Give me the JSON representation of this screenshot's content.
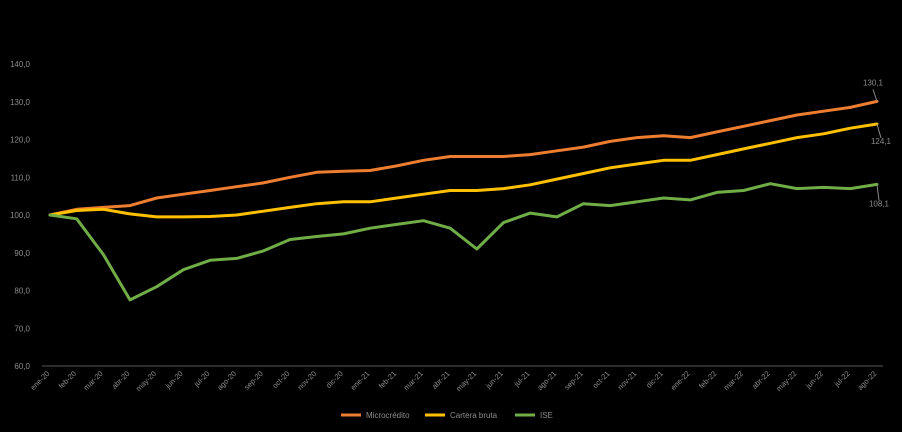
{
  "chart_data": {
    "type": "line",
    "title": "",
    "xlabel": "",
    "ylabel": "",
    "ylim": [
      60,
      140
    ],
    "yticks": [
      "60,0",
      "70,0",
      "80,0",
      "90,0",
      "100,0",
      "110,0",
      "120,0",
      "130,0",
      "140,0"
    ],
    "grid": false,
    "legend_position": "bottom",
    "categories": [
      "ene-20",
      "feb-20",
      "mar-20",
      "abr-20",
      "may-20",
      "jun-20",
      "jul-20",
      "ago-20",
      "sep-20",
      "oct-20",
      "nov-20",
      "dic-20",
      "ene-21",
      "feb-21",
      "mar-21",
      "abr-21",
      "may-21",
      "jun-21",
      "jul-21",
      "ago-21",
      "sep-21",
      "oct-21",
      "nov-21",
      "dic-21",
      "ene-22",
      "feb-22",
      "mar-22",
      "abr-22",
      "may-22",
      "jun-22",
      "jul-22",
      "ago-22"
    ],
    "series": [
      {
        "name": "Microcrédito",
        "color": "#ed7d31",
        "values": [
          100,
          101.5,
          102,
          102.5,
          104.5,
          105.5,
          106.5,
          107.5,
          108.5,
          110,
          111.3,
          111.6,
          111.8,
          113,
          114.5,
          115.5,
          115.5,
          115.5,
          116,
          117,
          118,
          119.5,
          120.5,
          121,
          120.5,
          122,
          123.5,
          125,
          126.5,
          127.5,
          128.5,
          130.1
        ],
        "end_label": "130,1"
      },
      {
        "name": "Cartera bruta",
        "color": "#ffc000",
        "values": [
          100,
          101.2,
          101.5,
          100.3,
          99.5,
          99.5,
          99.6,
          100,
          101,
          102,
          103,
          103.5,
          103.5,
          104.5,
          105.5,
          106.5,
          106.5,
          107,
          108,
          109.5,
          111,
          112.5,
          113.5,
          114.5,
          114.5,
          116,
          117.5,
          119,
          120.5,
          121.5,
          123,
          124.1
        ],
        "end_label": "124,1"
      },
      {
        "name": "ISE",
        "color": "#70ad47",
        "values": [
          100,
          99,
          89.5,
          77.5,
          81,
          85.5,
          88,
          88.5,
          90.5,
          93.5,
          94.3,
          95,
          96.5,
          97.5,
          98.5,
          96.5,
          91,
          98,
          100.5,
          99.5,
          103,
          102.5,
          103.5,
          104.5,
          104,
          106,
          106.5,
          108.3,
          107,
          107.3,
          107,
          108.1
        ],
        "end_label": "108,1"
      }
    ]
  }
}
